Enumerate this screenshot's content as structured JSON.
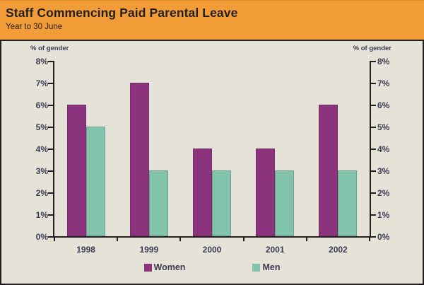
{
  "header": {
    "title": "Staff Commencing Paid Parental Leave",
    "subtitle": "Year to 30 June"
  },
  "chart_data": {
    "type": "bar",
    "title": "Staff Commencing Paid Parental Leave",
    "subtitle": "Year to 30 June",
    "categories": [
      "1998",
      "1999",
      "2000",
      "2001",
      "2002"
    ],
    "series": [
      {
        "name": "Women",
        "color": "#8B337C",
        "values": [
          6,
          7,
          4,
          4,
          6
        ]
      },
      {
        "name": "Men",
        "color": "#82C3AB",
        "values": [
          5,
          3,
          3,
          3,
          3
        ]
      }
    ],
    "left_axis_label": "% of gender",
    "right_axis_label": "% of gender",
    "ylim": [
      0,
      8
    ],
    "ytick_step": 1,
    "ytick_suffix": "%",
    "grid": false,
    "legend_position": "bottom"
  },
  "colors": {
    "header_bg": "#F29C38",
    "plot_bg": "#E5E3D7",
    "axis": "#231F20",
    "tick_text": "#3C3B52",
    "women": "#8B337C",
    "men": "#82C3AB"
  }
}
